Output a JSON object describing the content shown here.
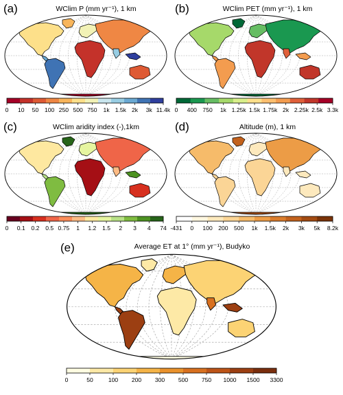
{
  "panels": [
    {
      "label": "(a)",
      "title": "WClim P (mm yr⁻¹), 1 km",
      "ticks": [
        "0",
        "10",
        "50",
        "100",
        "250",
        "500",
        "750",
        "1k",
        "1.5k",
        "2k",
        "3k",
        "11.4k"
      ],
      "colors": [
        "#a50026",
        "#c4322a",
        "#de5a34",
        "#ef8744",
        "#f8b55b",
        "#fde08a",
        "#f2f2b6",
        "#c9e6ee",
        "#98cde3",
        "#6aa9d3",
        "#3f73b4",
        "#2f3f9e"
      ],
      "land_tone": "precip"
    },
    {
      "label": "(b)",
      "title": "WClim PET (mm yr⁻¹), 1 km",
      "ticks": [
        "0",
        "400",
        "750",
        "1k",
        "1.25k",
        "1.5k",
        "1.75k",
        "2k",
        "2.25k",
        "2.5k",
        "3.3k"
      ],
      "colors": [
        "#006837",
        "#1a9850",
        "#66bd63",
        "#a6d96a",
        "#d9ef8b",
        "#fee08b",
        "#fdbf6f",
        "#f39c4f",
        "#e0603a",
        "#c1362a",
        "#a50026"
      ],
      "land_tone": "pet"
    },
    {
      "label": "(c)",
      "title": "WClim aridity index (-),1km",
      "ticks": [
        "0",
        "0.1",
        "0.2",
        "0.5",
        "0.75",
        "1",
        "1.2",
        "1.5",
        "2",
        "3",
        "4",
        "74"
      ],
      "colors": [
        "#67001f",
        "#a50f15",
        "#d7301f",
        "#ef6548",
        "#fc8d59",
        "#fdbb84",
        "#fee8a0",
        "#e6f5a0",
        "#b8e186",
        "#7fbc41",
        "#4d9221",
        "#276419"
      ],
      "land_tone": "aridity"
    },
    {
      "label": "(d)",
      "title": "Altitude (m), 1 km",
      "ticks": [
        "-431",
        "0",
        "100",
        "200",
        "500",
        "1k",
        "1.5k",
        "2k",
        "3k",
        "5k",
        "8.2k"
      ],
      "colors": [
        "#ffffff",
        "#fff7e0",
        "#fde9bd",
        "#fbd596",
        "#f6bb6a",
        "#ec9c46",
        "#db7c2b",
        "#c2611c",
        "#a34b12",
        "#7a3308"
      ],
      "land_tone": "altitude"
    },
    {
      "label": "(e)",
      "title": "Average ET at 1° (mm yr⁻¹), Budyko",
      "ticks": [
        "0",
        "50",
        "100",
        "200",
        "300",
        "500",
        "750",
        "1000",
        "1500",
        "3300"
      ],
      "colors": [
        "#fffde2",
        "#fde9a6",
        "#fcd374",
        "#f5b447",
        "#ea922c",
        "#d8701f",
        "#bd5417",
        "#9c3f12",
        "#7a2e0d"
      ],
      "land_tone": "et"
    }
  ]
}
